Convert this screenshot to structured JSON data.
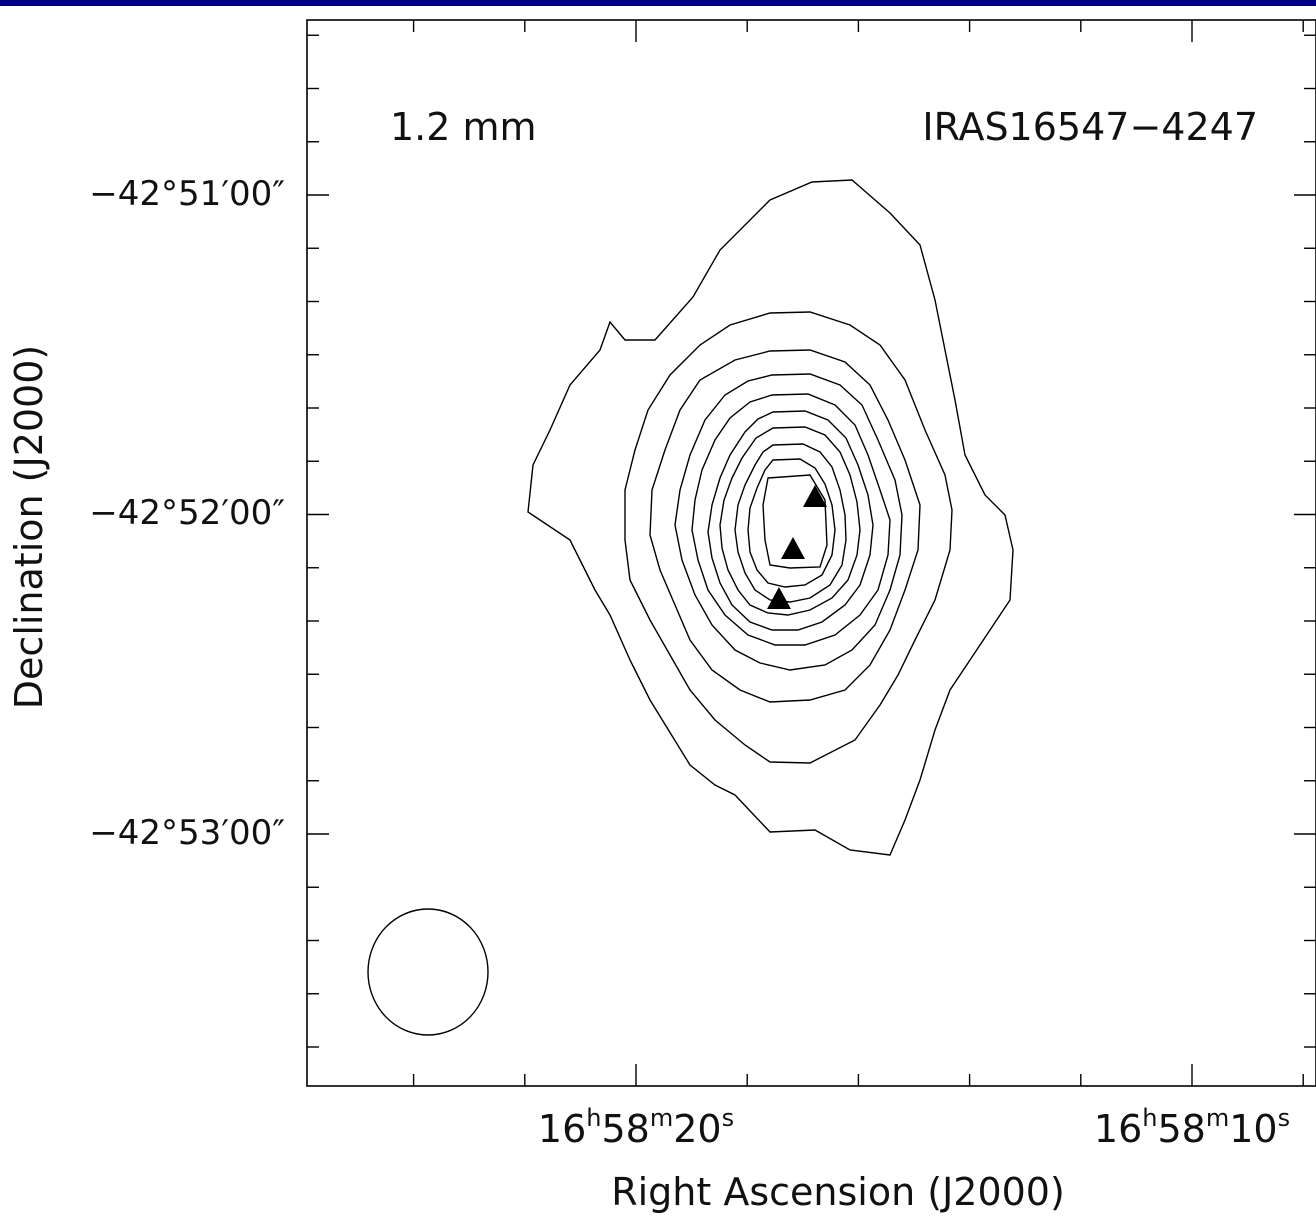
{
  "chart_data": {
    "type": "contour",
    "map_label": "1.2 mm",
    "source_name": "IRAS16547−4247",
    "xlabel": "Right Ascension (J2000)",
    "ylabel": "Declination (J2000)",
    "x_ticks": [
      {
        "text": "16h58m20s",
        "h": "16",
        "m": "58",
        "s": "20"
      },
      {
        "text": "16h58m10s",
        "h": "16",
        "m": "58",
        "s": "10"
      }
    ],
    "y_ticks": [
      "−42°51′00″",
      "−42°52′00″",
      "−42°53′00″"
    ],
    "grid": false,
    "beam": "circle, lower-left",
    "markers": "3 filled triangles near the peak",
    "contour_levels": 10,
    "colors": {
      "lines": "#000000",
      "banner": "#000080"
    }
  }
}
